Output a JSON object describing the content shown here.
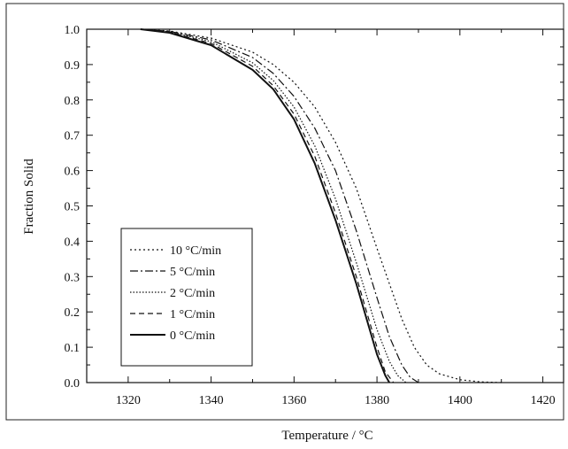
{
  "chart_data": {
    "type": "line",
    "xlabel": "Temperature / °C",
    "ylabel": "Fraction Solid",
    "xlim": [
      1310,
      1425
    ],
    "ylim": [
      0.0,
      1.0
    ],
    "xticks": [
      "1320",
      "1340",
      "1360",
      "1380",
      "1400",
      "1420"
    ],
    "yticks": [
      "0.0",
      "0.1",
      "0.2",
      "0.3",
      "0.4",
      "0.5",
      "0.6",
      "0.7",
      "0.8",
      "0.9",
      "1.0"
    ],
    "grid": false,
    "legend_position": "lower-left",
    "series": [
      {
        "name": "10 °C/min",
        "style": "dotted",
        "x": [
          1323,
          1330,
          1340,
          1350,
          1355,
          1360,
          1365,
          1370,
          1375,
          1380,
          1383,
          1386,
          1389,
          1392,
          1395,
          1400,
          1405,
          1410
        ],
        "y": [
          1.0,
          0.995,
          0.975,
          0.935,
          0.9,
          0.85,
          0.78,
          0.68,
          0.55,
          0.38,
          0.28,
          0.18,
          0.1,
          0.05,
          0.025,
          0.008,
          0.002,
          0.0
        ]
      },
      {
        "name": "5 °C/min",
        "style": "dash-dot",
        "x": [
          1323,
          1330,
          1340,
          1350,
          1355,
          1360,
          1365,
          1370,
          1375,
          1380,
          1383,
          1386,
          1388,
          1390
        ],
        "y": [
          1.0,
          0.994,
          0.97,
          0.92,
          0.875,
          0.81,
          0.72,
          0.6,
          0.43,
          0.24,
          0.13,
          0.05,
          0.015,
          0.0
        ]
      },
      {
        "name": "2 °C/min",
        "style": "dotted-fine",
        "x": [
          1323,
          1330,
          1340,
          1350,
          1355,
          1360,
          1365,
          1370,
          1375,
          1380,
          1383,
          1385,
          1387
        ],
        "y": [
          1.0,
          0.993,
          0.965,
          0.905,
          0.855,
          0.78,
          0.67,
          0.52,
          0.34,
          0.15,
          0.06,
          0.02,
          0.0
        ]
      },
      {
        "name": "1 °C/min",
        "style": "dashed",
        "x": [
          1323,
          1330,
          1340,
          1350,
          1355,
          1360,
          1365,
          1370,
          1375,
          1380,
          1382,
          1384
        ],
        "y": [
          1.0,
          0.992,
          0.96,
          0.895,
          0.84,
          0.76,
          0.64,
          0.48,
          0.3,
          0.1,
          0.03,
          0.0
        ]
      },
      {
        "name": "0 °C/min",
        "style": "solid",
        "x": [
          1323,
          1330,
          1340,
          1350,
          1355,
          1360,
          1365,
          1370,
          1375,
          1380,
          1382,
          1383
        ],
        "y": [
          1.0,
          0.99,
          0.955,
          0.885,
          0.83,
          0.745,
          0.62,
          0.46,
          0.28,
          0.08,
          0.02,
          0.0
        ]
      }
    ]
  }
}
